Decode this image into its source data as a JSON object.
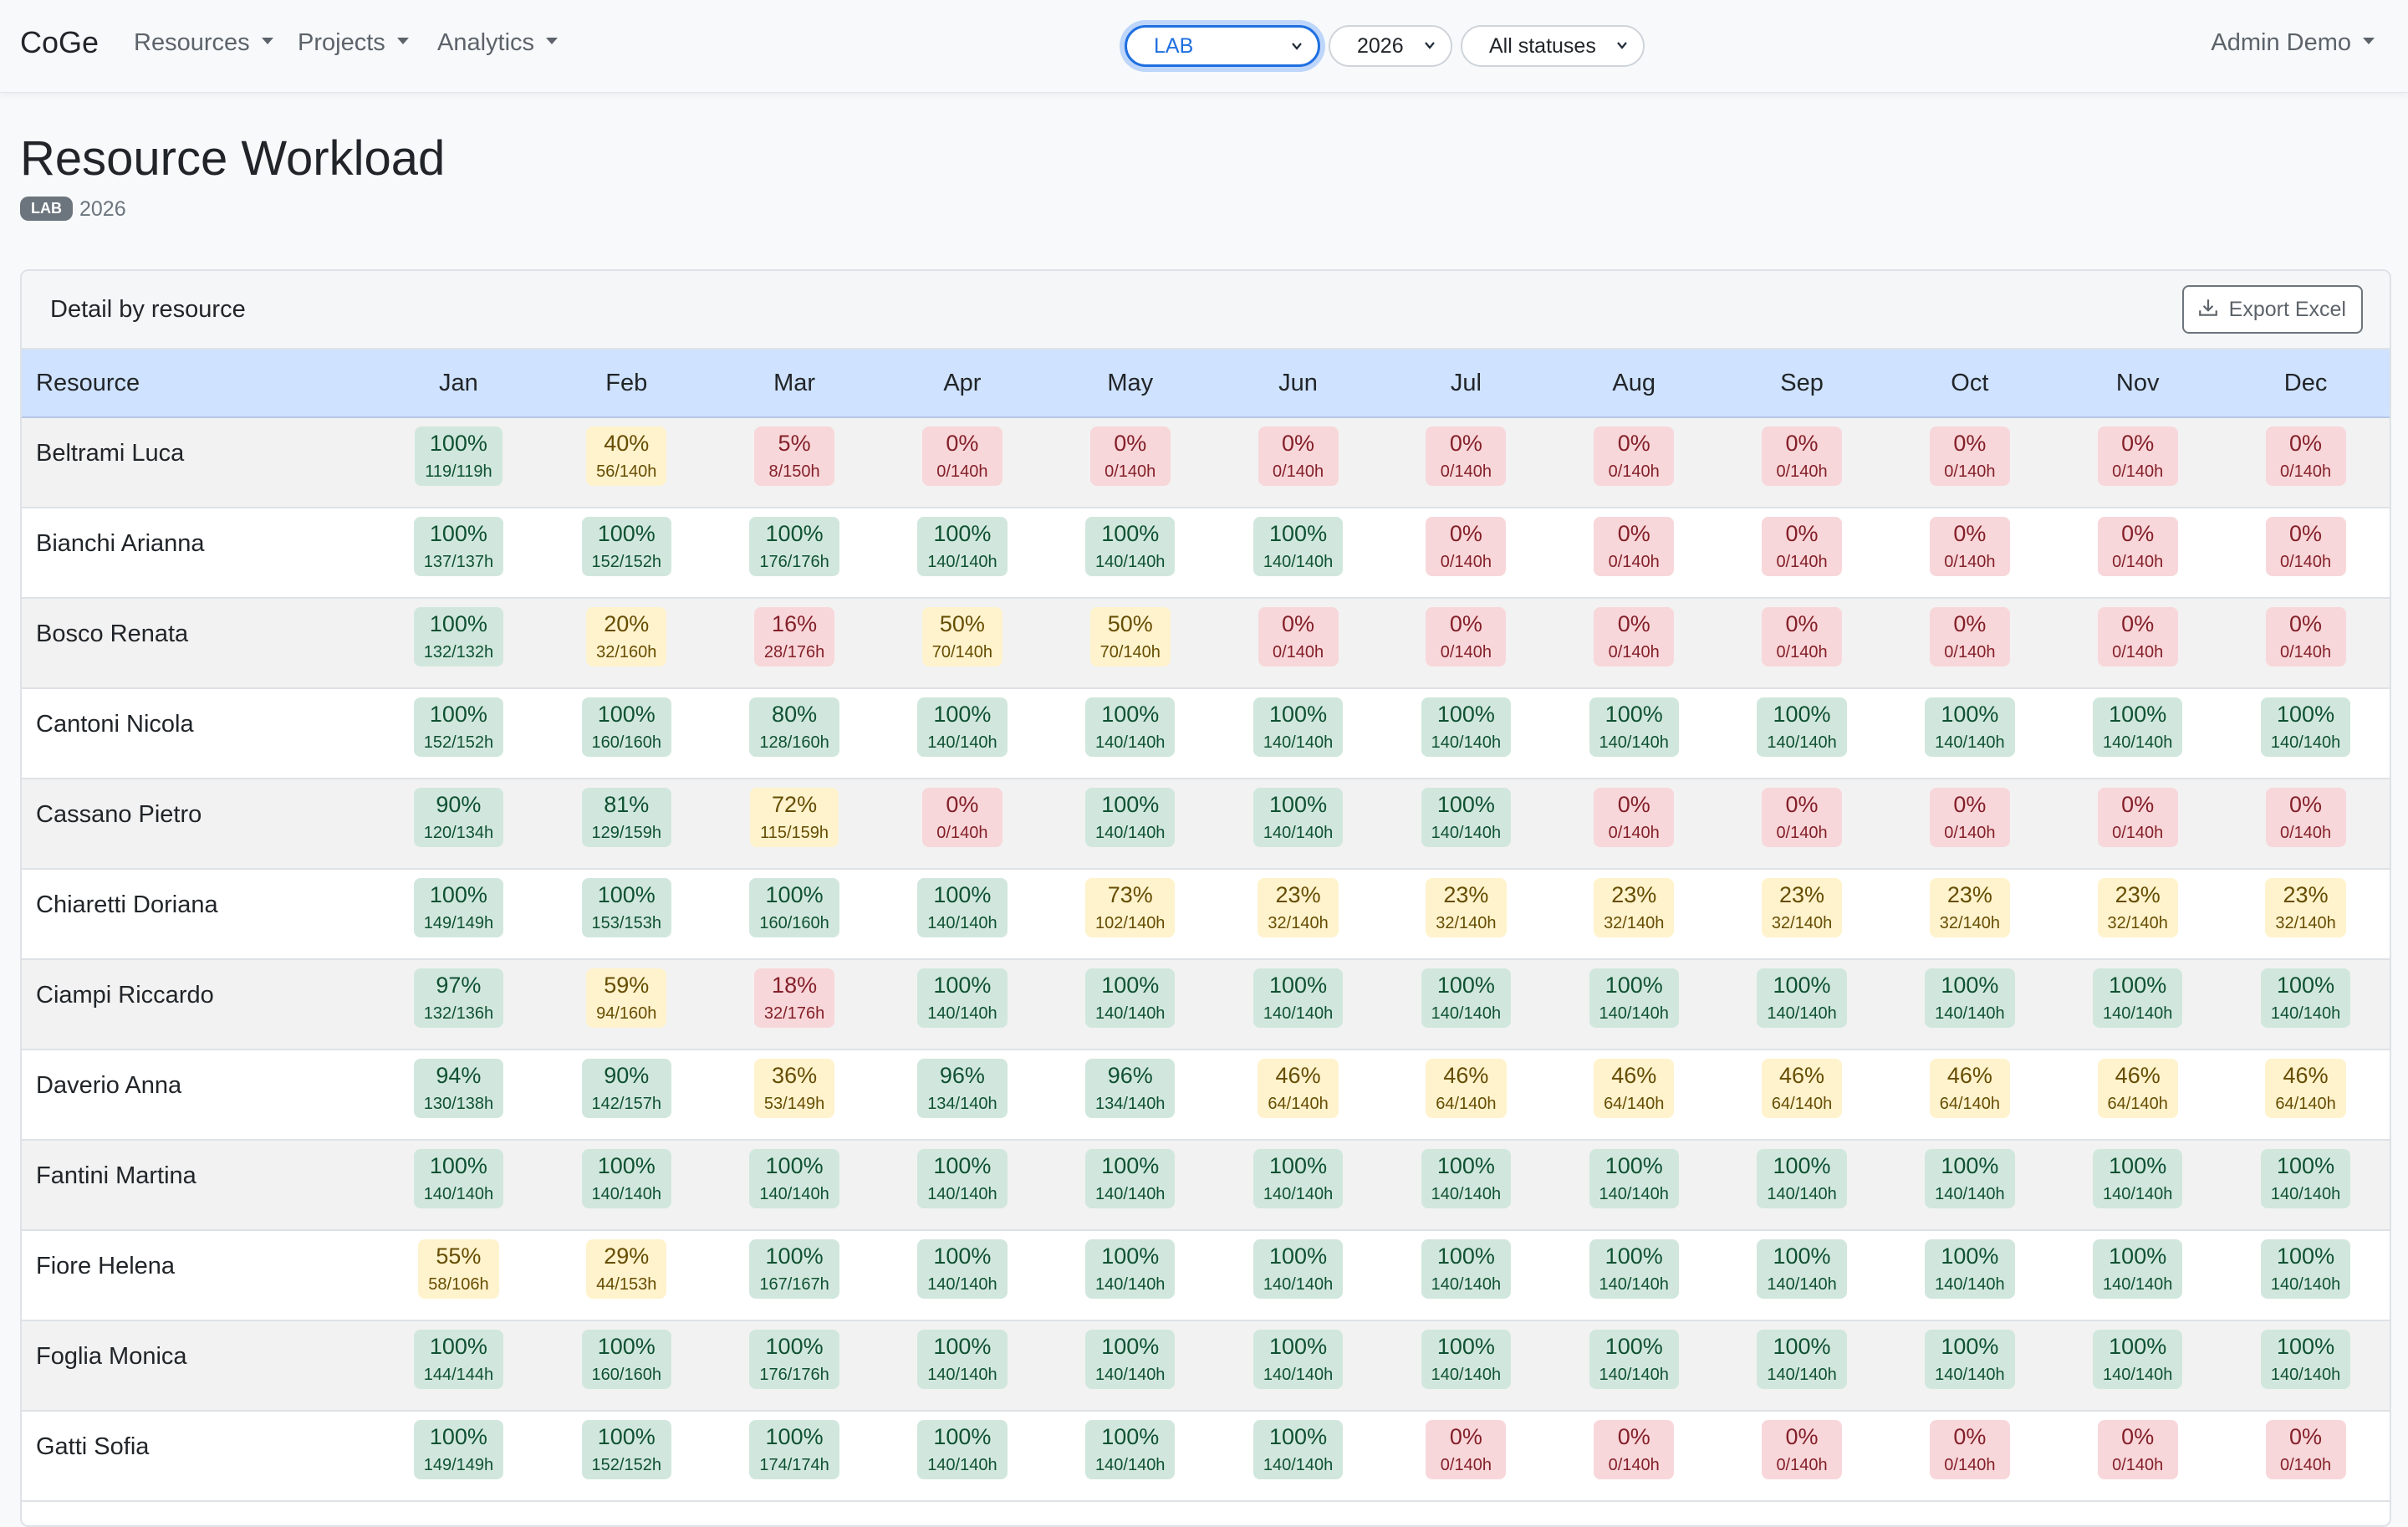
{
  "nav": {
    "brand": "CoGe",
    "menu": [
      "Resources",
      "Projects",
      "Analytics"
    ],
    "selects": {
      "unit": "LAB",
      "year": "2026",
      "status": "All statuses"
    },
    "user": "Admin Demo"
  },
  "page": {
    "title": "Resource Workload",
    "badge": "LAB",
    "year": "2026"
  },
  "card": {
    "title": "Detail by resource",
    "export_label": "Export Excel"
  },
  "table": {
    "resource_header": "Resource",
    "months": [
      "Jan",
      "Feb",
      "Mar",
      "Apr",
      "May",
      "Jun",
      "Jul",
      "Aug",
      "Sep",
      "Oct",
      "Nov",
      "Dec"
    ],
    "status_colors": {
      "green": "#d1e7dd",
      "yellow": "#fff3cd",
      "red": "#f8d7da"
    },
    "rows": [
      {
        "name": "Beltrami Luca",
        "cells": [
          {
            "pct": "100%",
            "hrs": "119/119h",
            "status": "green"
          },
          {
            "pct": "40%",
            "hrs": "56/140h",
            "status": "yellow"
          },
          {
            "pct": "5%",
            "hrs": "8/150h",
            "status": "red"
          },
          {
            "pct": "0%",
            "hrs": "0/140h",
            "status": "red"
          },
          {
            "pct": "0%",
            "hrs": "0/140h",
            "status": "red"
          },
          {
            "pct": "0%",
            "hrs": "0/140h",
            "status": "red"
          },
          {
            "pct": "0%",
            "hrs": "0/140h",
            "status": "red"
          },
          {
            "pct": "0%",
            "hrs": "0/140h",
            "status": "red"
          },
          {
            "pct": "0%",
            "hrs": "0/140h",
            "status": "red"
          },
          {
            "pct": "0%",
            "hrs": "0/140h",
            "status": "red"
          },
          {
            "pct": "0%",
            "hrs": "0/140h",
            "status": "red"
          },
          {
            "pct": "0%",
            "hrs": "0/140h",
            "status": "red"
          }
        ]
      },
      {
        "name": "Bianchi Arianna",
        "cells": [
          {
            "pct": "100%",
            "hrs": "137/137h",
            "status": "green"
          },
          {
            "pct": "100%",
            "hrs": "152/152h",
            "status": "green"
          },
          {
            "pct": "100%",
            "hrs": "176/176h",
            "status": "green"
          },
          {
            "pct": "100%",
            "hrs": "140/140h",
            "status": "green"
          },
          {
            "pct": "100%",
            "hrs": "140/140h",
            "status": "green"
          },
          {
            "pct": "100%",
            "hrs": "140/140h",
            "status": "green"
          },
          {
            "pct": "0%",
            "hrs": "0/140h",
            "status": "red"
          },
          {
            "pct": "0%",
            "hrs": "0/140h",
            "status": "red"
          },
          {
            "pct": "0%",
            "hrs": "0/140h",
            "status": "red"
          },
          {
            "pct": "0%",
            "hrs": "0/140h",
            "status": "red"
          },
          {
            "pct": "0%",
            "hrs": "0/140h",
            "status": "red"
          },
          {
            "pct": "0%",
            "hrs": "0/140h",
            "status": "red"
          }
        ]
      },
      {
        "name": "Bosco Renata",
        "cells": [
          {
            "pct": "100%",
            "hrs": "132/132h",
            "status": "green"
          },
          {
            "pct": "20%",
            "hrs": "32/160h",
            "status": "yellow"
          },
          {
            "pct": "16%",
            "hrs": "28/176h",
            "status": "red"
          },
          {
            "pct": "50%",
            "hrs": "70/140h",
            "status": "yellow"
          },
          {
            "pct": "50%",
            "hrs": "70/140h",
            "status": "yellow"
          },
          {
            "pct": "0%",
            "hrs": "0/140h",
            "status": "red"
          },
          {
            "pct": "0%",
            "hrs": "0/140h",
            "status": "red"
          },
          {
            "pct": "0%",
            "hrs": "0/140h",
            "status": "red"
          },
          {
            "pct": "0%",
            "hrs": "0/140h",
            "status": "red"
          },
          {
            "pct": "0%",
            "hrs": "0/140h",
            "status": "red"
          },
          {
            "pct": "0%",
            "hrs": "0/140h",
            "status": "red"
          },
          {
            "pct": "0%",
            "hrs": "0/140h",
            "status": "red"
          }
        ]
      },
      {
        "name": "Cantoni Nicola",
        "cells": [
          {
            "pct": "100%",
            "hrs": "152/152h",
            "status": "green"
          },
          {
            "pct": "100%",
            "hrs": "160/160h",
            "status": "green"
          },
          {
            "pct": "80%",
            "hrs": "128/160h",
            "status": "green"
          },
          {
            "pct": "100%",
            "hrs": "140/140h",
            "status": "green"
          },
          {
            "pct": "100%",
            "hrs": "140/140h",
            "status": "green"
          },
          {
            "pct": "100%",
            "hrs": "140/140h",
            "status": "green"
          },
          {
            "pct": "100%",
            "hrs": "140/140h",
            "status": "green"
          },
          {
            "pct": "100%",
            "hrs": "140/140h",
            "status": "green"
          },
          {
            "pct": "100%",
            "hrs": "140/140h",
            "status": "green"
          },
          {
            "pct": "100%",
            "hrs": "140/140h",
            "status": "green"
          },
          {
            "pct": "100%",
            "hrs": "140/140h",
            "status": "green"
          },
          {
            "pct": "100%",
            "hrs": "140/140h",
            "status": "green"
          }
        ]
      },
      {
        "name": "Cassano Pietro",
        "cells": [
          {
            "pct": "90%",
            "hrs": "120/134h",
            "status": "green"
          },
          {
            "pct": "81%",
            "hrs": "129/159h",
            "status": "green"
          },
          {
            "pct": "72%",
            "hrs": "115/159h",
            "status": "yellow"
          },
          {
            "pct": "0%",
            "hrs": "0/140h",
            "status": "red"
          },
          {
            "pct": "100%",
            "hrs": "140/140h",
            "status": "green"
          },
          {
            "pct": "100%",
            "hrs": "140/140h",
            "status": "green"
          },
          {
            "pct": "100%",
            "hrs": "140/140h",
            "status": "green"
          },
          {
            "pct": "0%",
            "hrs": "0/140h",
            "status": "red"
          },
          {
            "pct": "0%",
            "hrs": "0/140h",
            "status": "red"
          },
          {
            "pct": "0%",
            "hrs": "0/140h",
            "status": "red"
          },
          {
            "pct": "0%",
            "hrs": "0/140h",
            "status": "red"
          },
          {
            "pct": "0%",
            "hrs": "0/140h",
            "status": "red"
          }
        ]
      },
      {
        "name": "Chiaretti Doriana",
        "cells": [
          {
            "pct": "100%",
            "hrs": "149/149h",
            "status": "green"
          },
          {
            "pct": "100%",
            "hrs": "153/153h",
            "status": "green"
          },
          {
            "pct": "100%",
            "hrs": "160/160h",
            "status": "green"
          },
          {
            "pct": "100%",
            "hrs": "140/140h",
            "status": "green"
          },
          {
            "pct": "73%",
            "hrs": "102/140h",
            "status": "yellow"
          },
          {
            "pct": "23%",
            "hrs": "32/140h",
            "status": "yellow"
          },
          {
            "pct": "23%",
            "hrs": "32/140h",
            "status": "yellow"
          },
          {
            "pct": "23%",
            "hrs": "32/140h",
            "status": "yellow"
          },
          {
            "pct": "23%",
            "hrs": "32/140h",
            "status": "yellow"
          },
          {
            "pct": "23%",
            "hrs": "32/140h",
            "status": "yellow"
          },
          {
            "pct": "23%",
            "hrs": "32/140h",
            "status": "yellow"
          },
          {
            "pct": "23%",
            "hrs": "32/140h",
            "status": "yellow"
          }
        ]
      },
      {
        "name": "Ciampi Riccardo",
        "cells": [
          {
            "pct": "97%",
            "hrs": "132/136h",
            "status": "green"
          },
          {
            "pct": "59%",
            "hrs": "94/160h",
            "status": "yellow"
          },
          {
            "pct": "18%",
            "hrs": "32/176h",
            "status": "red"
          },
          {
            "pct": "100%",
            "hrs": "140/140h",
            "status": "green"
          },
          {
            "pct": "100%",
            "hrs": "140/140h",
            "status": "green"
          },
          {
            "pct": "100%",
            "hrs": "140/140h",
            "status": "green"
          },
          {
            "pct": "100%",
            "hrs": "140/140h",
            "status": "green"
          },
          {
            "pct": "100%",
            "hrs": "140/140h",
            "status": "green"
          },
          {
            "pct": "100%",
            "hrs": "140/140h",
            "status": "green"
          },
          {
            "pct": "100%",
            "hrs": "140/140h",
            "status": "green"
          },
          {
            "pct": "100%",
            "hrs": "140/140h",
            "status": "green"
          },
          {
            "pct": "100%",
            "hrs": "140/140h",
            "status": "green"
          }
        ]
      },
      {
        "name": "Daverio Anna",
        "cells": [
          {
            "pct": "94%",
            "hrs": "130/138h",
            "status": "green"
          },
          {
            "pct": "90%",
            "hrs": "142/157h",
            "status": "green"
          },
          {
            "pct": "36%",
            "hrs": "53/149h",
            "status": "yellow"
          },
          {
            "pct": "96%",
            "hrs": "134/140h",
            "status": "green"
          },
          {
            "pct": "96%",
            "hrs": "134/140h",
            "status": "green"
          },
          {
            "pct": "46%",
            "hrs": "64/140h",
            "status": "yellow"
          },
          {
            "pct": "46%",
            "hrs": "64/140h",
            "status": "yellow"
          },
          {
            "pct": "46%",
            "hrs": "64/140h",
            "status": "yellow"
          },
          {
            "pct": "46%",
            "hrs": "64/140h",
            "status": "yellow"
          },
          {
            "pct": "46%",
            "hrs": "64/140h",
            "status": "yellow"
          },
          {
            "pct": "46%",
            "hrs": "64/140h",
            "status": "yellow"
          },
          {
            "pct": "46%",
            "hrs": "64/140h",
            "status": "yellow"
          }
        ]
      },
      {
        "name": "Fantini Martina",
        "cells": [
          {
            "pct": "100%",
            "hrs": "140/140h",
            "status": "green"
          },
          {
            "pct": "100%",
            "hrs": "140/140h",
            "status": "green"
          },
          {
            "pct": "100%",
            "hrs": "140/140h",
            "status": "green"
          },
          {
            "pct": "100%",
            "hrs": "140/140h",
            "status": "green"
          },
          {
            "pct": "100%",
            "hrs": "140/140h",
            "status": "green"
          },
          {
            "pct": "100%",
            "hrs": "140/140h",
            "status": "green"
          },
          {
            "pct": "100%",
            "hrs": "140/140h",
            "status": "green"
          },
          {
            "pct": "100%",
            "hrs": "140/140h",
            "status": "green"
          },
          {
            "pct": "100%",
            "hrs": "140/140h",
            "status": "green"
          },
          {
            "pct": "100%",
            "hrs": "140/140h",
            "status": "green"
          },
          {
            "pct": "100%",
            "hrs": "140/140h",
            "status": "green"
          },
          {
            "pct": "100%",
            "hrs": "140/140h",
            "status": "green"
          }
        ]
      },
      {
        "name": "Fiore Helena",
        "cells": [
          {
            "pct": "55%",
            "hrs": "58/106h",
            "status": "yellow"
          },
          {
            "pct": "29%",
            "hrs": "44/153h",
            "status": "yellow"
          },
          {
            "pct": "100%",
            "hrs": "167/167h",
            "status": "green"
          },
          {
            "pct": "100%",
            "hrs": "140/140h",
            "status": "green"
          },
          {
            "pct": "100%",
            "hrs": "140/140h",
            "status": "green"
          },
          {
            "pct": "100%",
            "hrs": "140/140h",
            "status": "green"
          },
          {
            "pct": "100%",
            "hrs": "140/140h",
            "status": "green"
          },
          {
            "pct": "100%",
            "hrs": "140/140h",
            "status": "green"
          },
          {
            "pct": "100%",
            "hrs": "140/140h",
            "status": "green"
          },
          {
            "pct": "100%",
            "hrs": "140/140h",
            "status": "green"
          },
          {
            "pct": "100%",
            "hrs": "140/140h",
            "status": "green"
          },
          {
            "pct": "100%",
            "hrs": "140/140h",
            "status": "green"
          }
        ]
      },
      {
        "name": "Foglia Monica",
        "cells": [
          {
            "pct": "100%",
            "hrs": "144/144h",
            "status": "green"
          },
          {
            "pct": "100%",
            "hrs": "160/160h",
            "status": "green"
          },
          {
            "pct": "100%",
            "hrs": "176/176h",
            "status": "green"
          },
          {
            "pct": "100%",
            "hrs": "140/140h",
            "status": "green"
          },
          {
            "pct": "100%",
            "hrs": "140/140h",
            "status": "green"
          },
          {
            "pct": "100%",
            "hrs": "140/140h",
            "status": "green"
          },
          {
            "pct": "100%",
            "hrs": "140/140h",
            "status": "green"
          },
          {
            "pct": "100%",
            "hrs": "140/140h",
            "status": "green"
          },
          {
            "pct": "100%",
            "hrs": "140/140h",
            "status": "green"
          },
          {
            "pct": "100%",
            "hrs": "140/140h",
            "status": "green"
          },
          {
            "pct": "100%",
            "hrs": "140/140h",
            "status": "green"
          },
          {
            "pct": "100%",
            "hrs": "140/140h",
            "status": "green"
          }
        ]
      },
      {
        "name": "Gatti Sofia",
        "cells": [
          {
            "pct": "100%",
            "hrs": "149/149h",
            "status": "green"
          },
          {
            "pct": "100%",
            "hrs": "152/152h",
            "status": "green"
          },
          {
            "pct": "100%",
            "hrs": "174/174h",
            "status": "green"
          },
          {
            "pct": "100%",
            "hrs": "140/140h",
            "status": "green"
          },
          {
            "pct": "100%",
            "hrs": "140/140h",
            "status": "green"
          },
          {
            "pct": "100%",
            "hrs": "140/140h",
            "status": "green"
          },
          {
            "pct": "0%",
            "hrs": "0/140h",
            "status": "red"
          },
          {
            "pct": "0%",
            "hrs": "0/140h",
            "status": "red"
          },
          {
            "pct": "0%",
            "hrs": "0/140h",
            "status": "red"
          },
          {
            "pct": "0%",
            "hrs": "0/140h",
            "status": "red"
          },
          {
            "pct": "0%",
            "hrs": "0/140h",
            "status": "red"
          },
          {
            "pct": "0%",
            "hrs": "0/140h",
            "status": "red"
          }
        ]
      }
    ]
  }
}
